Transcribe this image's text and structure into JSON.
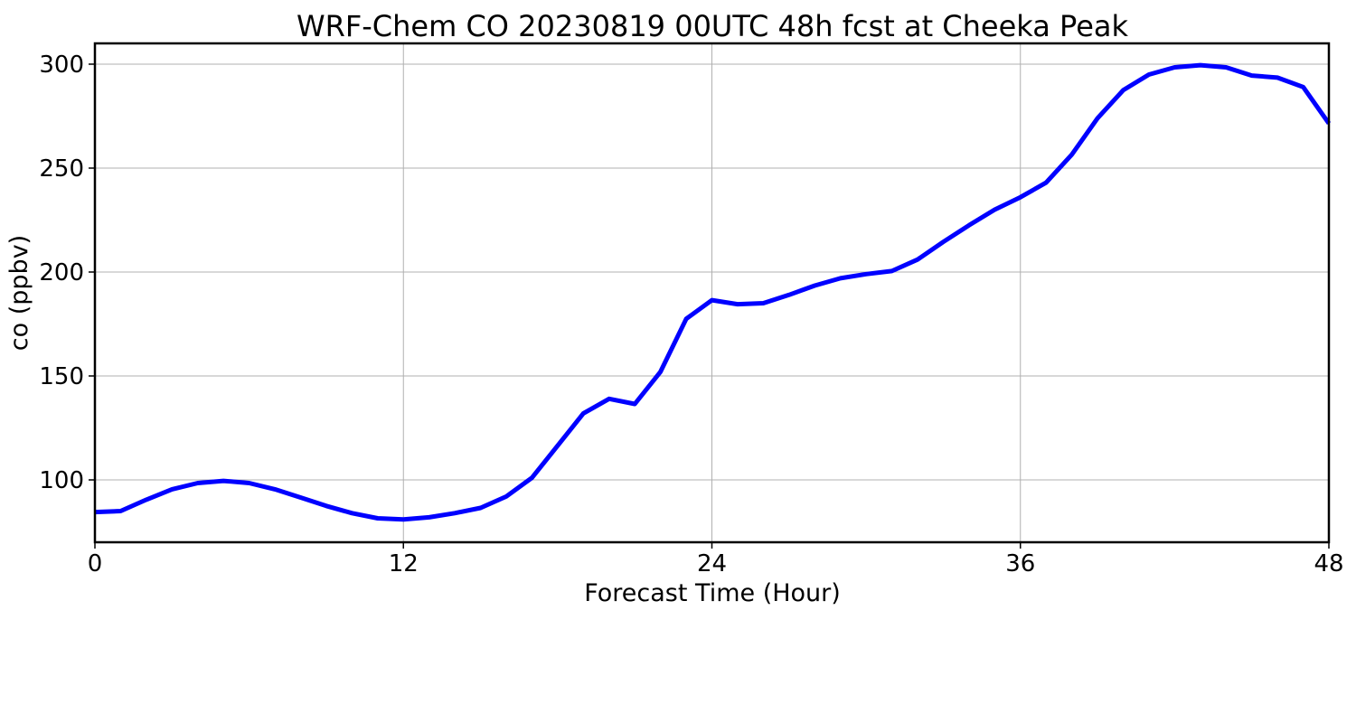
{
  "chart_data": {
    "type": "line",
    "title": "WRF-Chem CO  20230819 00UTC 48h fcst at Cheeka Peak",
    "xlabel": "Forecast Time (Hour)",
    "ylabel": "co  (ppbv)",
    "xlim": [
      0,
      48
    ],
    "ylim": [
      70,
      310
    ],
    "xticks": [
      0,
      12,
      24,
      36,
      48
    ],
    "yticks": [
      100,
      150,
      200,
      250,
      300
    ],
    "grid": true,
    "legend": "none",
    "series": [
      {
        "color": "#0000ff",
        "x": [
          0,
          1,
          2,
          3,
          4,
          5,
          6,
          7,
          8,
          9,
          10,
          11,
          12,
          13,
          14,
          15,
          16,
          17,
          18,
          19,
          20,
          21,
          22,
          23,
          24,
          25,
          26,
          27,
          28,
          29,
          30,
          31,
          32,
          33,
          34,
          35,
          36,
          37,
          38,
          39,
          40,
          41,
          42,
          43,
          44,
          45,
          46,
          47,
          48
        ],
        "y": [
          84.5,
          85,
          90.5,
          95.5,
          98.5,
          99.5,
          98.5,
          95.5,
          91.5,
          87.5,
          84,
          81.5,
          81,
          82,
          84,
          86.5,
          92,
          101,
          116.5,
          132,
          139,
          136.5,
          152,
          177.5,
          186.5,
          184.5,
          185,
          189,
          193.5,
          197,
          199,
          200.5,
          206,
          214.5,
          222.5,
          230,
          236,
          243,
          256.5,
          274,
          287.5,
          295,
          298.5,
          299.5,
          298.5,
          294.5,
          293.5,
          289,
          271.5
        ]
      }
    ]
  }
}
